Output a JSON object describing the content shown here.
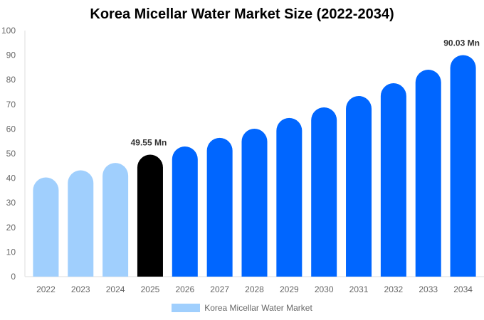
{
  "chart_data": {
    "type": "bar",
    "title": "Korea Micellar Water Market Size (2022-2034)",
    "categories": [
      "2022",
      "2023",
      "2024",
      "2025",
      "2026",
      "2027",
      "2028",
      "2029",
      "2030",
      "2031",
      "2032",
      "2033",
      "2034"
    ],
    "series": [
      {
        "name": "Korea Micellar Water Market",
        "values": [
          40.3,
          43.2,
          46.2,
          49.55,
          52.9,
          56.4,
          60.1,
          64.5,
          68.8,
          73.4,
          78.6,
          84.1,
          90.03
        ]
      }
    ],
    "bar_colors": [
      "#a0cffd",
      "#a0cffd",
      "#a0cffd",
      "#000000",
      "#0066ff",
      "#0066ff",
      "#0066ff",
      "#0066ff",
      "#0066ff",
      "#0066ff",
      "#0066ff",
      "#0066ff",
      "#0066ff"
    ],
    "data_labels": [
      {
        "index": 3,
        "text": "49.55 Mn"
      },
      {
        "index": 12,
        "text": "90.03 Mn"
      }
    ],
    "ylim": [
      0,
      100
    ],
    "yticks": [
      "0",
      "10",
      "20",
      "30",
      "40",
      "50",
      "60",
      "70",
      "80",
      "90",
      "100"
    ],
    "grid": false,
    "legend_position": "bottom"
  }
}
